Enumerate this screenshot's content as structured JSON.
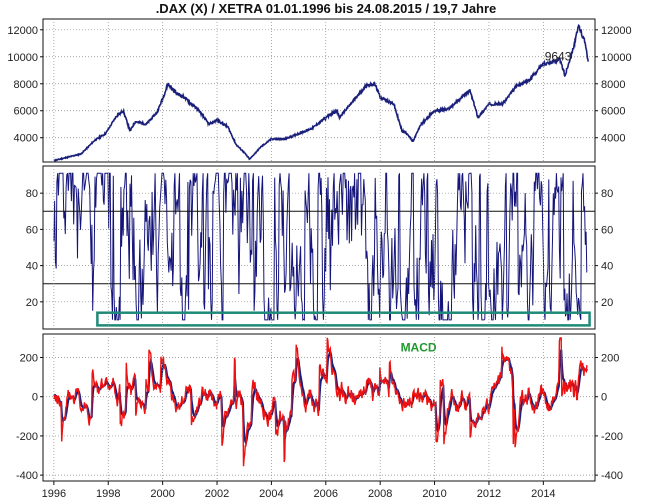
{
  "title": ".DAX (X) / XETRA 01.01.1996 bis 24.08.2015 / 19,7 Jahre",
  "colors": {
    "price": "#1a1f7a",
    "oscillator": "#14147a",
    "macd_fast": "#ee1111",
    "macd_slow": "#1a1f7a",
    "highlight_box": "#1f8a78",
    "macd_label": "#1f9a2e",
    "grid": "#888888"
  },
  "chart_data": [
    {
      "type": "line",
      "panel": "price",
      "xlim": [
        1995.6,
        2015.9
      ],
      "ylim": [
        2200,
        12800
      ],
      "yticks": [
        "4000",
        "6000",
        "8000",
        "10000",
        "12000"
      ],
      "grid": true,
      "annotation": "9643",
      "series": [
        {
          "x": [
            1996.0,
            1996.5,
            1997.0,
            1997.5,
            1997.9,
            1998.3,
            1998.55,
            1998.8,
            1999.0,
            1999.4,
            1999.8,
            2000.0,
            2000.2,
            2000.5,
            2000.8,
            2001.0,
            2001.3,
            2001.7,
            2002.0,
            2002.4,
            2002.7,
            2003.0,
            2003.2,
            2003.6,
            2004.0,
            2004.5,
            2005.0,
            2005.5,
            2006.0,
            2006.4,
            2006.5,
            2007.0,
            2007.5,
            2007.8,
            2008.0,
            2008.5,
            2008.8,
            2009.0,
            2009.2,
            2009.5,
            2010.0,
            2010.5,
            2011.0,
            2011.3,
            2011.6,
            2011.8,
            2012.0,
            2012.5,
            2013.0,
            2013.5,
            2014.0,
            2014.3,
            2014.6,
            2014.8,
            2015.0,
            2015.15,
            2015.3,
            2015.45,
            2015.55,
            2015.65
          ],
          "values": [
            2300,
            2550,
            2800,
            3800,
            4300,
            5600,
            6000,
            4500,
            5200,
            5000,
            5900,
            6900,
            8000,
            7300,
            7000,
            6600,
            6100,
            5000,
            5300,
            4800,
            3500,
            2900,
            2400,
            3300,
            3900,
            3900,
            4300,
            4700,
            5500,
            6000,
            5500,
            6700,
            7900,
            8000,
            7000,
            6500,
            4500,
            4300,
            3700,
            5000,
            6000,
            6100,
            7000,
            7500,
            5500,
            6000,
            6500,
            6500,
            7800,
            8300,
            9500,
            9600,
            9800,
            8600,
            10000,
            11000,
            12300,
            11500,
            11000,
            9643
          ]
        }
      ]
    },
    {
      "type": "line",
      "panel": "oscillator",
      "xlim": [
        1995.6,
        2015.9
      ],
      "ylim": [
        5,
        95
      ],
      "yticks": [
        "20",
        "40",
        "60",
        "80"
      ],
      "reference_lines": [
        30,
        70
      ],
      "grid": true
    },
    {
      "type": "line",
      "panel": "macd",
      "xlim": [
        1995.6,
        2015.9
      ],
      "ylim": [
        -430,
        320
      ],
      "yticks": [
        "-400",
        "-200",
        "0",
        "200"
      ],
      "grid": true,
      "annotation": "MACD",
      "xtick_labels": [
        "1996",
        "1998",
        "2000",
        "2002",
        "2004",
        "2006",
        "2008",
        "2010",
        "2012",
        "2014"
      ],
      "xtick_values": [
        1996,
        1998,
        2000,
        2002,
        2004,
        2006,
        2008,
        2010,
        2012,
        2014
      ]
    }
  ]
}
